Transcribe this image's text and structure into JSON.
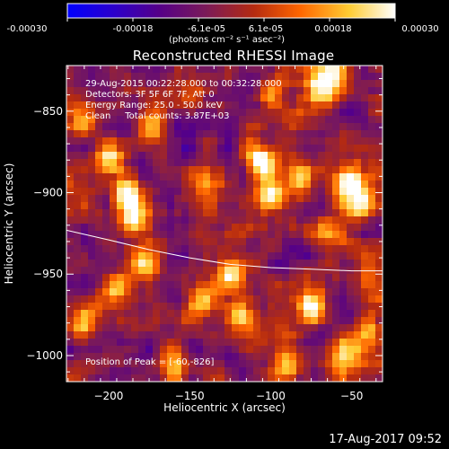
{
  "colorbar": {
    "tick_labels": [
      "-0.00030",
      "-0.00018",
      "-6.1e-05",
      "6.1e-05",
      "0.00018",
      "0.00030"
    ],
    "unit": "(photons cm⁻² s⁻¹ asec⁻²)"
  },
  "chart_data": {
    "type": "heatmap",
    "title": "Reconstructed RHESSI Image",
    "xlabel": "Heliocentric X (arcsec)",
    "ylabel": "Heliocentric Y (arcsec)",
    "xlim": [
      -226,
      -31
    ],
    "ylim": [
      -1016,
      -822
    ],
    "x_ticks": [
      -200,
      -150,
      -100,
      -50
    ],
    "y_ticks": [
      -850,
      -900,
      -950,
      -1000
    ],
    "x_tick_labels": [
      "−200",
      "−150",
      "−100",
      "−50"
    ],
    "y_tick_labels": [
      "−850",
      "−900",
      "−950",
      "−1000"
    ],
    "value_range": [
      -0.0003,
      0.0003
    ],
    "colormap": [
      "#0000ff",
      "#2b00cc",
      "#550088",
      "#7a1a5a",
      "#b52b10",
      "#ff6600",
      "#ffcc33",
      "#ffffff"
    ],
    "annotations": [
      "29-Aug-2015 00:22:28.000 to 00:32:28.000",
      "Detectors: 3F 5F 6F 7F, Att 0",
      "Energy Range: 25.0 - 50.0 keV",
      "Clean     Total counts: 3.87E+03"
    ],
    "peak_label": "Position of Peak = [-60,-826]",
    "limb_curve": {
      "x": [
        -226,
        -200,
        -175,
        -150,
        -125,
        -100,
        -75,
        -50,
        -31
      ],
      "y": [
        -923,
        -929,
        -935,
        -940,
        -944,
        -946,
        -947,
        -948,
        -948
      ]
    },
    "peak_blobs": [
      {
        "x": -60,
        "y": -826,
        "v": 0.00029
      },
      {
        "x": -70,
        "y": -835,
        "v": 0.00022
      },
      {
        "x": -52,
        "y": -893,
        "v": 0.0003
      },
      {
        "x": -45,
        "y": -905,
        "v": 0.00024
      },
      {
        "x": -82,
        "y": -890,
        "v": 0.0002
      },
      {
        "x": -105,
        "y": -880,
        "v": 0.00024
      },
      {
        "x": -100,
        "y": -900,
        "v": 0.00022
      },
      {
        "x": -200,
        "y": -880,
        "v": 0.00024
      },
      {
        "x": -190,
        "y": -900,
        "v": 0.00022
      },
      {
        "x": -185,
        "y": -915,
        "v": 0.00028
      },
      {
        "x": -175,
        "y": -860,
        "v": 0.00016
      },
      {
        "x": -215,
        "y": -855,
        "v": 0.00018
      },
      {
        "x": -140,
        "y": -895,
        "v": 0.00016
      },
      {
        "x": -125,
        "y": -950,
        "v": 0.0003
      },
      {
        "x": -120,
        "y": -975,
        "v": 0.00018
      },
      {
        "x": -145,
        "y": -965,
        "v": 0.00018
      },
      {
        "x": -180,
        "y": -940,
        "v": 0.00022
      },
      {
        "x": -195,
        "y": -960,
        "v": 0.00016
      },
      {
        "x": -215,
        "y": -980,
        "v": 0.0002
      },
      {
        "x": -75,
        "y": -970,
        "v": 0.00024
      },
      {
        "x": -55,
        "y": -1000,
        "v": 0.00026
      },
      {
        "x": -40,
        "y": -985,
        "v": 0.00022
      },
      {
        "x": -90,
        "y": -1005,
        "v": 0.00018
      },
      {
        "x": -160,
        "y": -1005,
        "v": 0.00016
      },
      {
        "x": -40,
        "y": -950,
        "v": 0.00016
      },
      {
        "x": -150,
        "y": -840,
        "v": 0.00012
      },
      {
        "x": -100,
        "y": -840,
        "v": 0.00012
      },
      {
        "x": -65,
        "y": -925,
        "v": 0.00014
      }
    ]
  },
  "footer": {
    "date": "17-Aug-2017 09:52"
  }
}
